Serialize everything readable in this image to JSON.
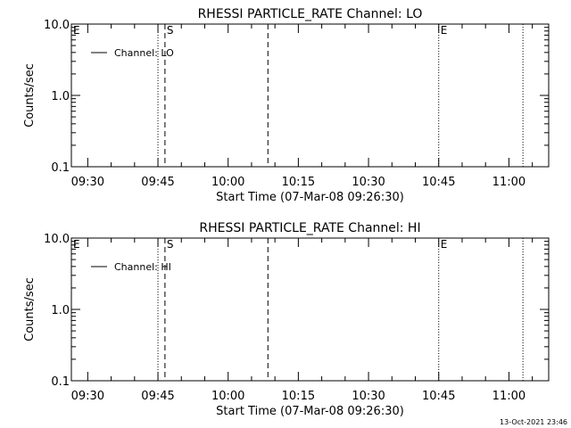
{
  "chart_data": [
    {
      "type": "line",
      "title": "RHESSI PARTICLE_RATE Channel: LO",
      "xlabel": "Start Time (07-Mar-08 09:26:30)",
      "ylabel": "Counts/sec",
      "y_scale": "log",
      "ylim": [
        0.1,
        10.0
      ],
      "y_ticks": [
        {
          "value": 0.1,
          "label": "0.1"
        },
        {
          "value": 1.0,
          "label": "1.0"
        },
        {
          "value": 10.0,
          "label": "10.0"
        }
      ],
      "xlim": [
        "09:26:30",
        "11:08:30"
      ],
      "x_ticks": [
        "09:30",
        "09:45",
        "10:00",
        "10:15",
        "10:30",
        "10:45",
        "11:00"
      ],
      "grid": false,
      "legend_position": "top-left",
      "series": [
        {
          "name": "Channel: LO",
          "values": []
        }
      ],
      "markers": [
        {
          "time": "09:26:30",
          "style": "dotted",
          "label": "E"
        },
        {
          "time": "09:45:00",
          "style": "dotted",
          "label": ""
        },
        {
          "time": "09:46:30",
          "style": "dashed",
          "label": "S"
        },
        {
          "time": "10:08:30",
          "style": "dashed",
          "label": ""
        },
        {
          "time": "10:45:00",
          "style": "dotted",
          "label": "E"
        },
        {
          "time": "11:03:00",
          "style": "dotted",
          "label": ""
        }
      ]
    },
    {
      "type": "line",
      "title": "RHESSI PARTICLE_RATE Channel: HI",
      "xlabel": "Start Time (07-Mar-08 09:26:30)",
      "ylabel": "Counts/sec",
      "y_scale": "log",
      "ylim": [
        0.1,
        10.0
      ],
      "y_ticks": [
        {
          "value": 0.1,
          "label": "0.1"
        },
        {
          "value": 1.0,
          "label": "1.0"
        },
        {
          "value": 10.0,
          "label": "10.0"
        }
      ],
      "xlim": [
        "09:26:30",
        "11:08:30"
      ],
      "x_ticks": [
        "09:30",
        "09:45",
        "10:00",
        "10:15",
        "10:30",
        "10:45",
        "11:00"
      ],
      "grid": false,
      "legend_position": "top-left",
      "series": [
        {
          "name": "Channel: HI",
          "values": []
        }
      ],
      "markers": [
        {
          "time": "09:26:30",
          "style": "dotted",
          "label": "E"
        },
        {
          "time": "09:45:00",
          "style": "dotted",
          "label": ""
        },
        {
          "time": "09:46:30",
          "style": "dashed",
          "label": "S"
        },
        {
          "time": "10:08:30",
          "style": "dashed",
          "label": ""
        },
        {
          "time": "10:45:00",
          "style": "dotted",
          "label": "E"
        },
        {
          "time": "11:03:00",
          "style": "dotted",
          "label": ""
        }
      ]
    }
  ],
  "footer_timestamp": "13-Oct-2021 23:46"
}
